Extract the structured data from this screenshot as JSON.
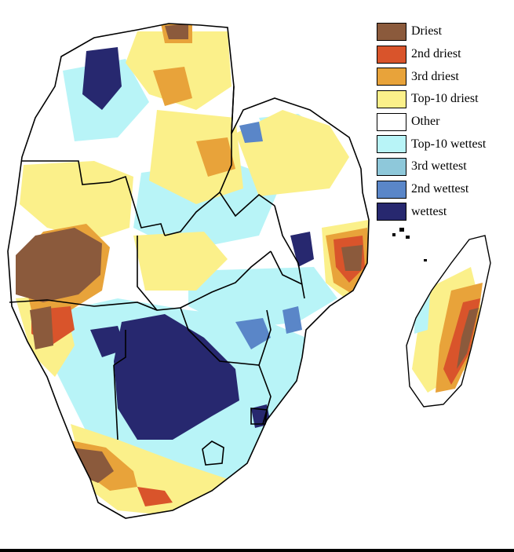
{
  "legend": {
    "items": [
      {
        "label": "Driest",
        "color": "#8B5A3C"
      },
      {
        "label": "2nd driest",
        "color": "#D9542B"
      },
      {
        "label": "3rd driest",
        "color": "#E8A33A"
      },
      {
        "label": "Top-10 driest",
        "color": "#FBF08A"
      },
      {
        "label": "Other",
        "color": "#FFFFFF"
      },
      {
        "label": "Top-10 wettest",
        "color": "#B8F4F7"
      },
      {
        "label": "3rd wettest",
        "color": "#8EC8DA"
      },
      {
        "label": "2nd wettest",
        "color": "#5A86C8"
      },
      {
        "label": "wettest",
        "color": "#27286F"
      }
    ]
  },
  "palette": {
    "background_land": "#FFFFFF",
    "border": "#000000"
  }
}
